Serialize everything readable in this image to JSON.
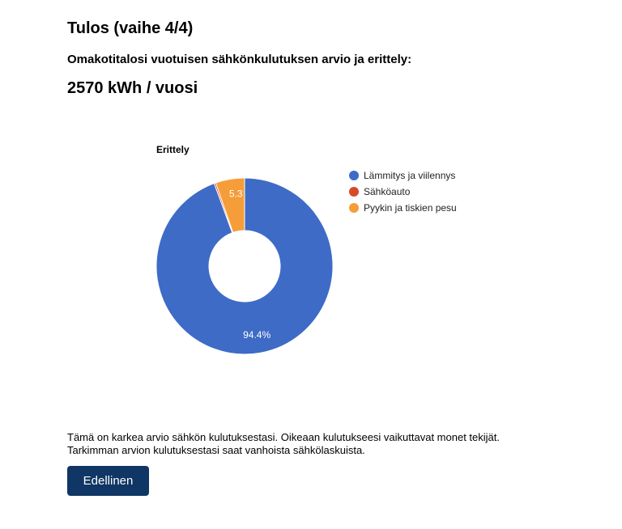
{
  "header": {
    "title": "Tulos (vaihe 4/4)",
    "subtitle": "Omakotitalosi vuotuisen sähkönkulutuksen arvio ja erittely:",
    "total": "2570 kWh / vuosi"
  },
  "chart_data": {
    "type": "pie",
    "style": "donut",
    "title": "Erittely",
    "categories": [
      "Lämmitys ja viilennys",
      "Sähköauto",
      "Pyykin ja tiskien pesu"
    ],
    "values": [
      94.4,
      0.3,
      5.3
    ],
    "slice_labels": [
      "94.4%",
      "",
      "5.3"
    ],
    "colors": [
      "#3e6bc6",
      "#d64a2b",
      "#f59d38"
    ],
    "legend_position": "right"
  },
  "footer": {
    "note_line1": "Tämä on karkea arvio sähkön kulutuksestasi. Oikeaan kulutukseesi vaikuttavat monet tekijät.",
    "note_line2": "Tarkimman arvion kulutuksestasi saat vanhoista sähkölaskuista.",
    "back_label": "Edellinen"
  }
}
